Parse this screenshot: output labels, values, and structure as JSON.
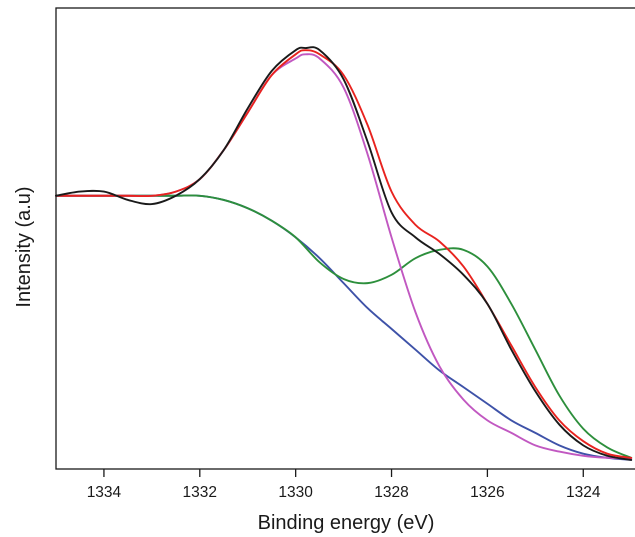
{
  "chart_data": {
    "type": "line",
    "title": "",
    "xlabel": "Binding energy (eV)",
    "ylabel": "Intensity (a.u)",
    "xlim": [
      1335.0,
      1322.9
    ],
    "x_reversed": true,
    "ylim": [
      0,
      1.0
    ],
    "y_ticks_shown": false,
    "grid": false,
    "legend": "none",
    "x_ticks": [
      1334,
      1332,
      1330,
      1328,
      1326,
      1324
    ],
    "x_tick_labels": [
      "1334",
      "1332",
      "1330",
      "1328",
      "1326",
      "1324"
    ],
    "series": [
      {
        "color": "#1a1a1a",
        "x": [
          1335.0,
          1334.5,
          1334.0,
          1333.5,
          1333.0,
          1332.5,
          1332.0,
          1331.5,
          1331.0,
          1330.5,
          1330.0,
          1329.8,
          1329.5,
          1329.0,
          1328.5,
          1328.0,
          1327.5,
          1327.0,
          1326.5,
          1326.0,
          1325.5,
          1325.0,
          1324.5,
          1324.0,
          1323.5,
          1323.0
        ],
        "y": [
          0.64,
          0.65,
          0.65,
          0.63,
          0.62,
          0.64,
          0.68,
          0.75,
          0.85,
          0.94,
          0.99,
          0.995,
          0.99,
          0.92,
          0.77,
          0.6,
          0.54,
          0.5,
          0.45,
          0.38,
          0.27,
          0.17,
          0.09,
          0.04,
          0.015,
          0.005
        ]
      },
      {
        "color": "#e8231f",
        "x": [
          1335.0,
          1334.5,
          1334.0,
          1333.5,
          1333.0,
          1332.5,
          1332.0,
          1331.5,
          1331.0,
          1330.5,
          1330.0,
          1329.8,
          1329.5,
          1329.0,
          1328.5,
          1328.0,
          1327.5,
          1327.0,
          1326.5,
          1326.0,
          1325.5,
          1325.0,
          1324.5,
          1324.0,
          1323.5,
          1323.0
        ],
        "y": [
          0.64,
          0.64,
          0.64,
          0.64,
          0.64,
          0.65,
          0.68,
          0.75,
          0.84,
          0.93,
          0.98,
          0.99,
          0.98,
          0.93,
          0.81,
          0.65,
          0.57,
          0.53,
          0.47,
          0.38,
          0.28,
          0.18,
          0.1,
          0.05,
          0.02,
          0.01
        ]
      },
      {
        "color": "#c158c1",
        "x": [
          1335.0,
          1334.5,
          1334.0,
          1333.5,
          1333.0,
          1332.5,
          1332.0,
          1331.5,
          1331.0,
          1330.5,
          1330.0,
          1329.8,
          1329.5,
          1329.0,
          1328.5,
          1328.0,
          1327.5,
          1327.0,
          1326.5,
          1326.0,
          1325.5,
          1325.0,
          1324.5,
          1324.0,
          1323.5,
          1323.0
        ],
        "y": [
          0.64,
          0.64,
          0.64,
          0.64,
          0.64,
          0.65,
          0.68,
          0.75,
          0.84,
          0.93,
          0.97,
          0.98,
          0.97,
          0.9,
          0.74,
          0.54,
          0.36,
          0.23,
          0.15,
          0.1,
          0.07,
          0.04,
          0.025,
          0.015,
          0.01,
          0.008
        ]
      },
      {
        "color": "#2d8f3c",
        "x": [
          1335.0,
          1334.5,
          1334.0,
          1333.5,
          1333.0,
          1332.5,
          1332.0,
          1331.5,
          1331.0,
          1330.5,
          1330.0,
          1329.5,
          1329.0,
          1328.5,
          1328.0,
          1327.5,
          1327.0,
          1326.5,
          1326.0,
          1325.5,
          1325.0,
          1324.5,
          1324.0,
          1323.5,
          1323.0
        ],
        "y": [
          0.64,
          0.64,
          0.64,
          0.64,
          0.64,
          0.64,
          0.64,
          0.63,
          0.61,
          0.58,
          0.54,
          0.48,
          0.44,
          0.43,
          0.45,
          0.49,
          0.51,
          0.51,
          0.47,
          0.38,
          0.27,
          0.16,
          0.08,
          0.035,
          0.01
        ]
      },
      {
        "color": "#3e52a8",
        "x": [
          1335.0,
          1334.5,
          1334.0,
          1333.5,
          1333.0,
          1332.5,
          1332.0,
          1331.5,
          1331.0,
          1330.5,
          1330.0,
          1329.5,
          1329.0,
          1328.5,
          1328.0,
          1327.5,
          1327.0,
          1326.5,
          1326.0,
          1325.5,
          1325.0,
          1324.5,
          1324.0,
          1323.5,
          1323.0
        ],
        "y": [
          0.64,
          0.64,
          0.64,
          0.64,
          0.64,
          0.64,
          0.64,
          0.63,
          0.61,
          0.58,
          0.54,
          0.49,
          0.43,
          0.37,
          0.32,
          0.27,
          0.22,
          0.18,
          0.14,
          0.1,
          0.07,
          0.04,
          0.02,
          0.01,
          0.005
        ]
      }
    ]
  }
}
